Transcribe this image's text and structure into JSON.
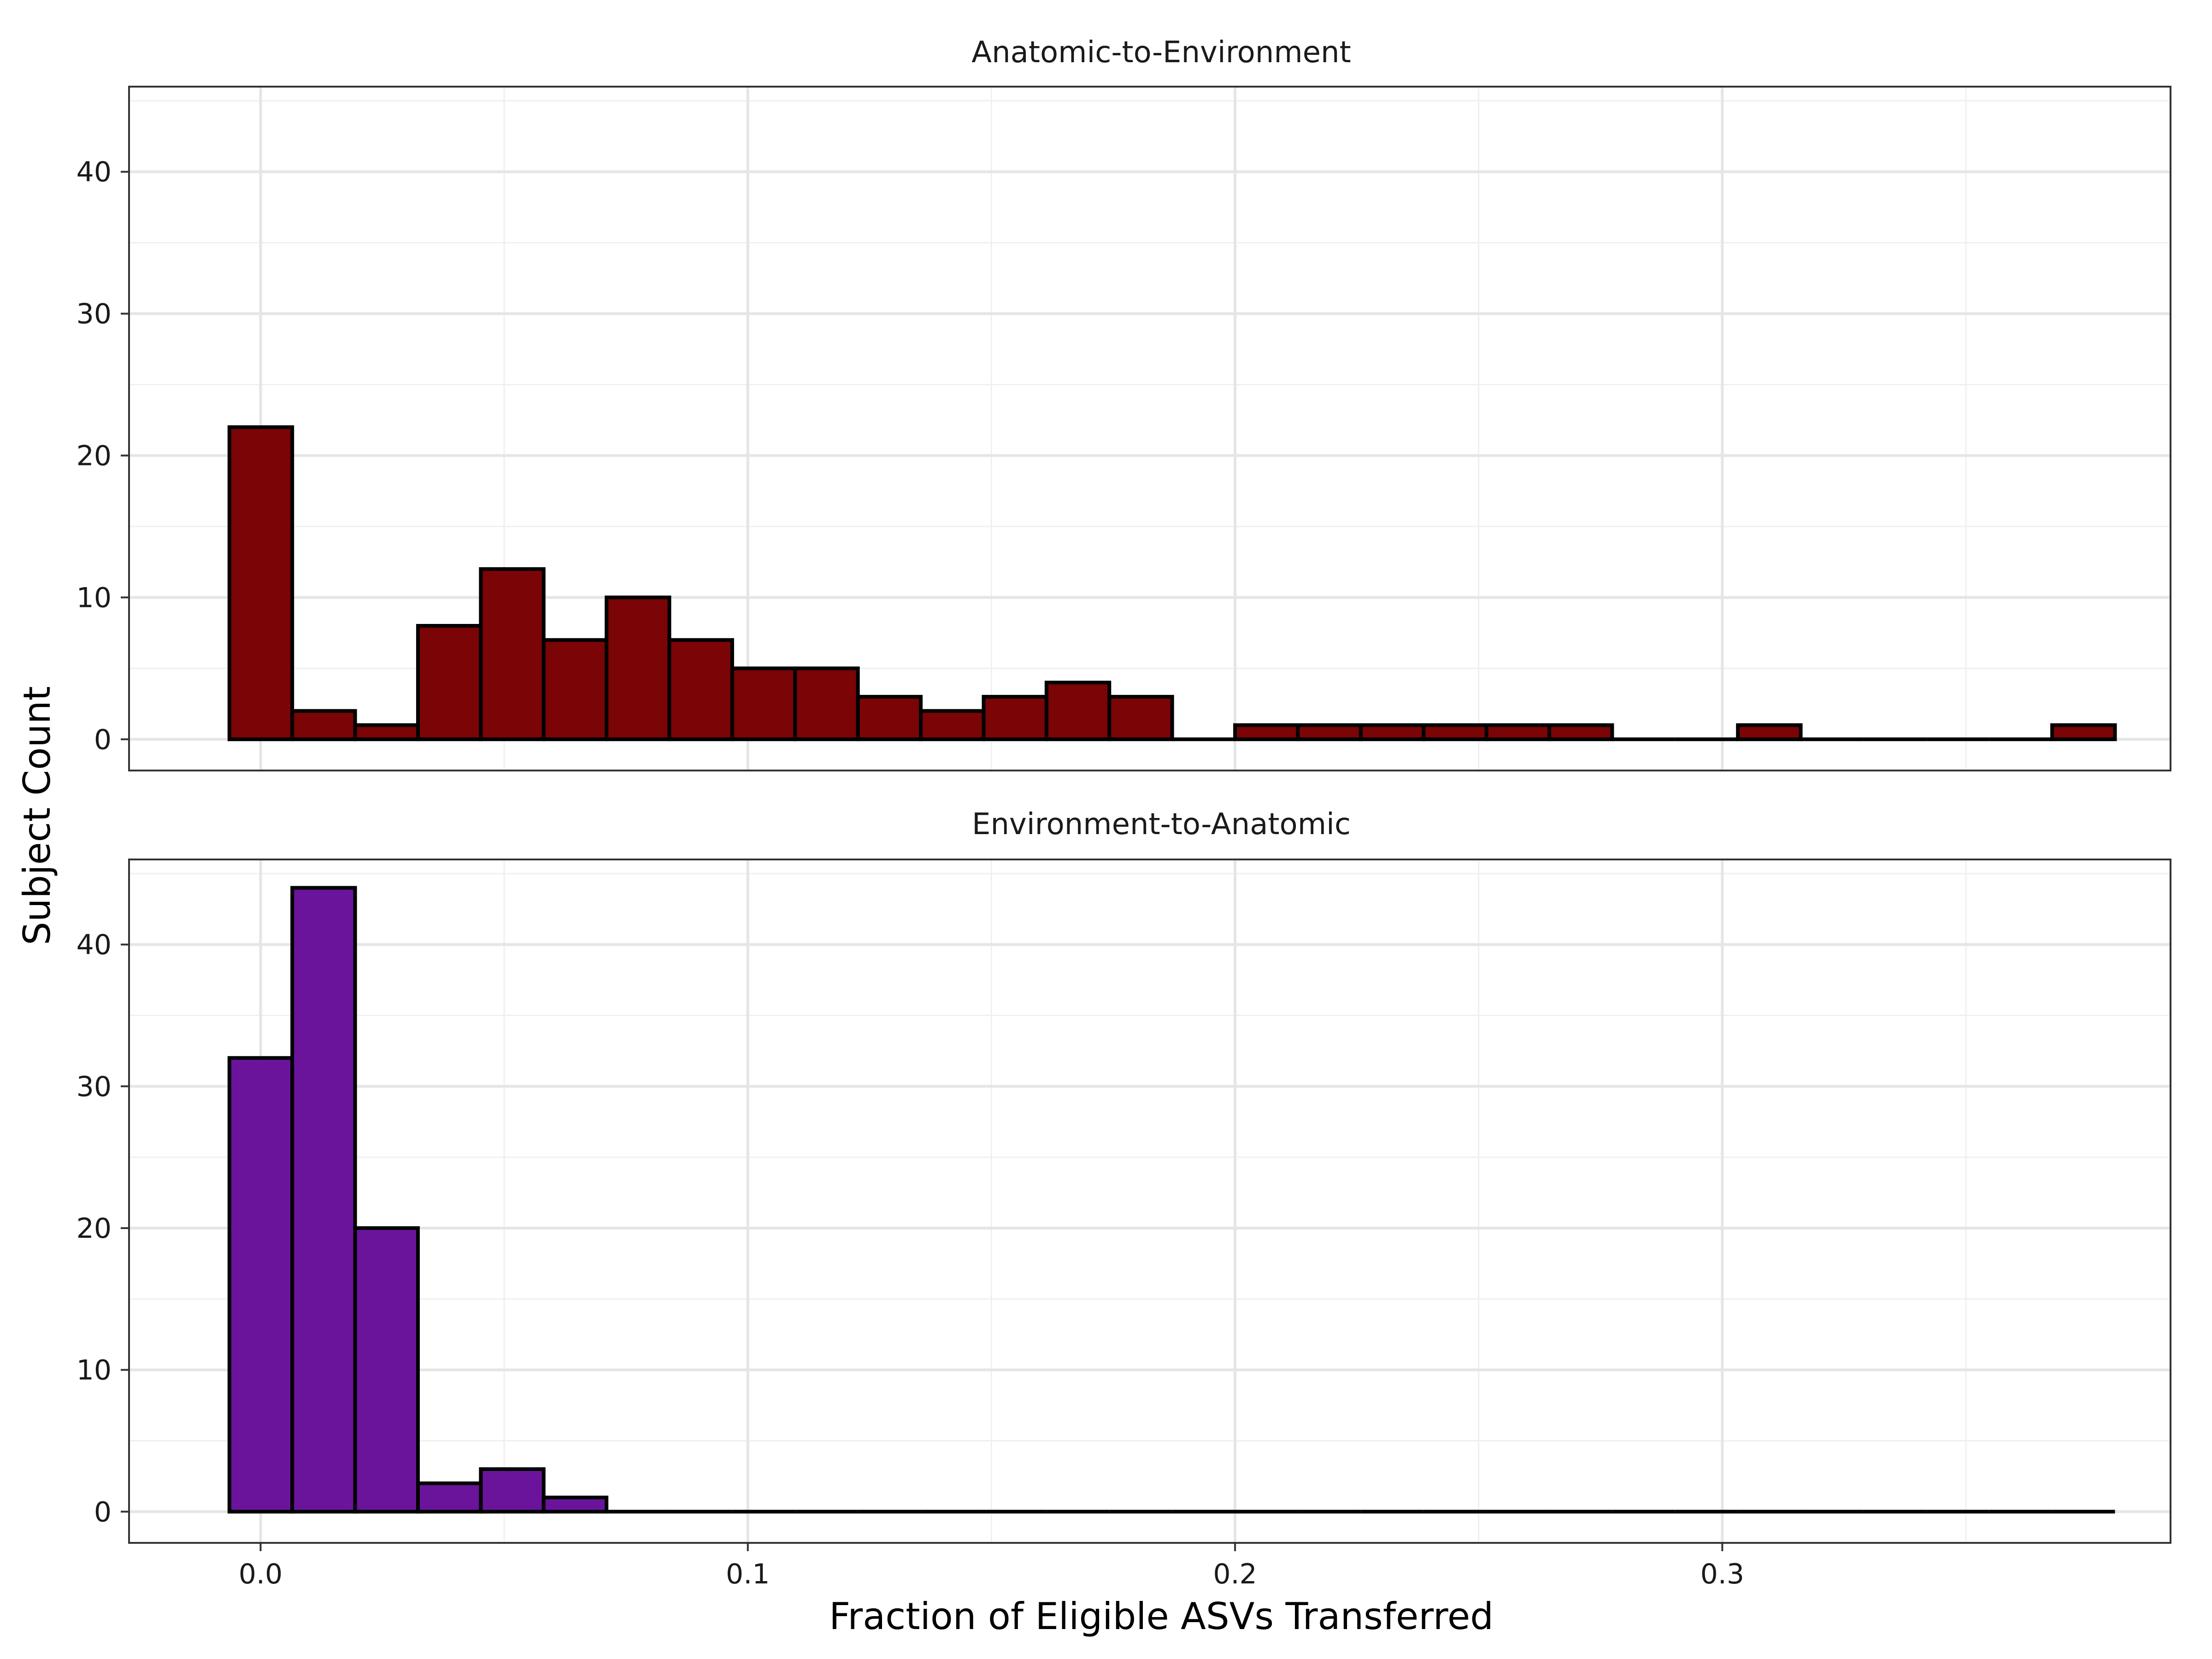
{
  "chart_data": {
    "type": "bar",
    "xlabel": "Fraction of Eligible ASVs Transferred",
    "ylabel": "Subject Count",
    "xlim": [
      -0.027,
      0.392
    ],
    "x_ticks": [
      0.0,
      0.1,
      0.2,
      0.3
    ],
    "x_tick_labels": [
      "0.0",
      "0.1",
      "0.2",
      "0.3"
    ],
    "ylim": [
      -2.2,
      46.0
    ],
    "y_ticks": [
      0,
      10,
      20,
      30,
      40
    ],
    "y_tick_labels": [
      "0",
      "10",
      "20",
      "30",
      "40"
    ],
    "grid": true,
    "legend": "none",
    "bin_width": 0.0129,
    "bin_start": -0.0064,
    "panels": [
      {
        "title": "Anatomic-to-Environment",
        "color": "#7a0406",
        "values": [
          22,
          2,
          1,
          8,
          12,
          7,
          10,
          7,
          5,
          5,
          3,
          2,
          3,
          4,
          3,
          0,
          1,
          1,
          1,
          1,
          1,
          1,
          0,
          0,
          1,
          0,
          0,
          0,
          0,
          1
        ]
      },
      {
        "title": "Environment-to-Anatomic",
        "color": "#6a149b",
        "values": [
          32,
          44,
          20,
          2,
          3,
          1,
          0,
          0,
          0,
          0,
          0,
          0,
          0,
          0,
          0,
          0,
          0,
          0,
          0,
          0,
          0,
          0,
          0,
          0,
          0,
          0,
          0,
          0,
          0,
          0
        ]
      }
    ]
  }
}
